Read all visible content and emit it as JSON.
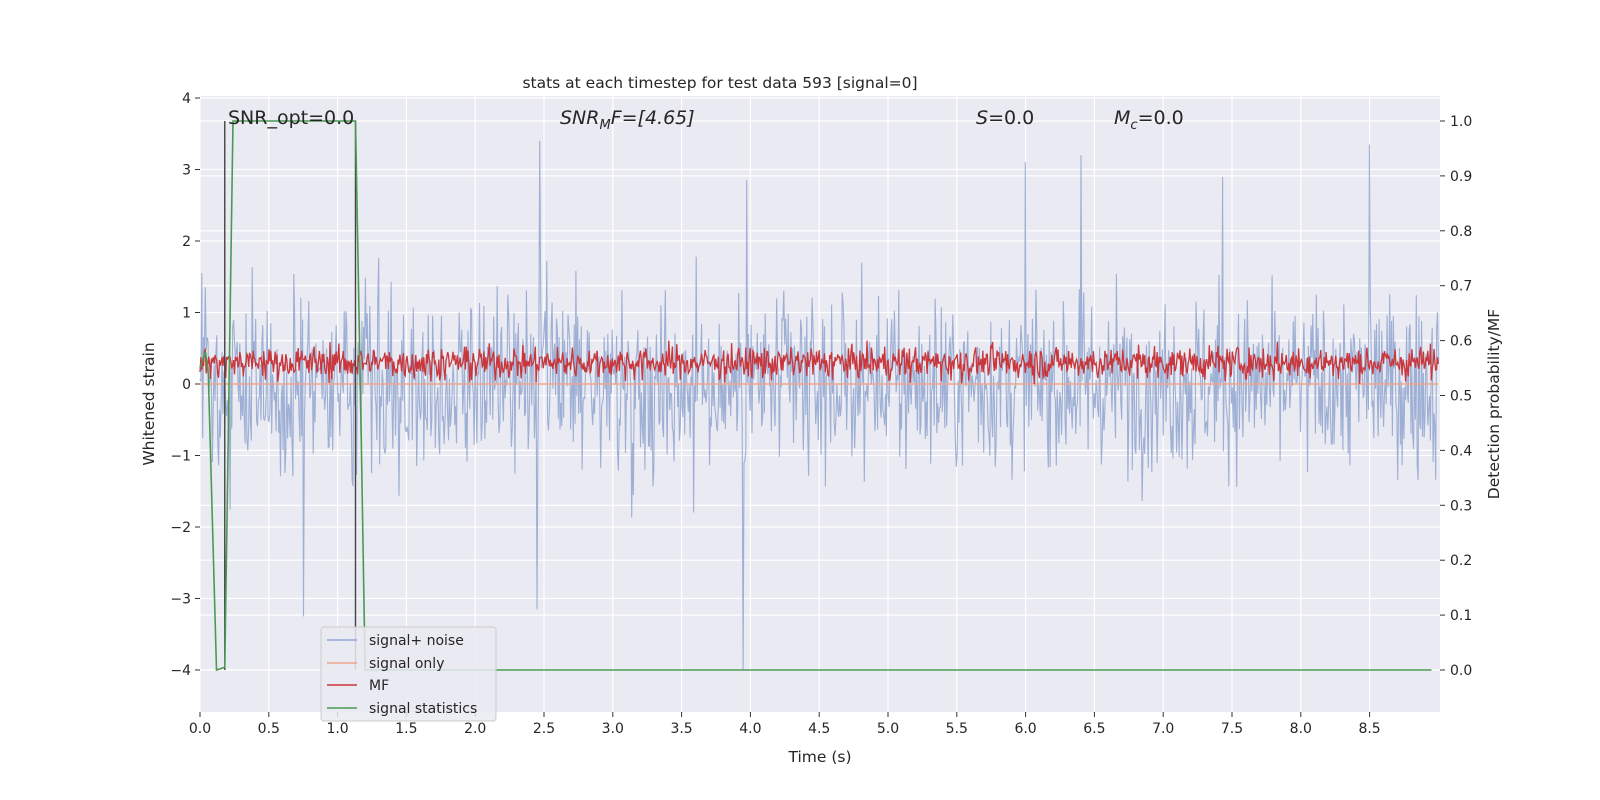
{
  "chart_data": {
    "type": "line",
    "title": "stats at each timestep for test data 593 [signal=0]",
    "xlabel": "Time (s)",
    "ylabel": "Whitened strain",
    "y2label": "Detection probability/MF",
    "xlim": [
      0.0,
      9.0
    ],
    "ylim": [
      -4.35,
      4.1
    ],
    "y2lim": [
      -0.05,
      1.04
    ],
    "x_ticks": [
      "0.0",
      "0.5",
      "1.0",
      "1.5",
      "2.0",
      "2.5",
      "3.0",
      "3.5",
      "4.0",
      "4.5",
      "5.0",
      "5.5",
      "6.0",
      "6.5",
      "7.0",
      "7.5",
      "8.0",
      "8.5"
    ],
    "y_ticks": [
      "−4",
      "−3",
      "−2",
      "−1",
      "0",
      "1",
      "2",
      "3",
      "4"
    ],
    "y2_ticks": [
      "0.0",
      "0.1",
      "0.2",
      "0.3",
      "0.4",
      "0.5",
      "0.6",
      "0.7",
      "0.8",
      "0.9",
      "1.0"
    ],
    "grid": true,
    "legend_position": "lower-left",
    "series": [
      {
        "name": "signal+ noise",
        "axis": "left",
        "color": "#8fa5cf",
        "description_envelope": "noise band roughly between -1.9 and 1.9 with spikes up to 3.4 and down to -4.0",
        "notable_points": [
          [
            0.75,
            -3.25
          ],
          [
            2.47,
            3.4
          ],
          [
            2.45,
            -3.15
          ],
          [
            3.95,
            -4.0
          ],
          [
            3.97,
            2.85
          ],
          [
            6.0,
            3.1
          ],
          [
            6.4,
            3.2
          ],
          [
            7.43,
            2.9
          ],
          [
            8.5,
            3.35
          ]
        ]
      },
      {
        "name": "signal only",
        "axis": "left",
        "color": "#f0a58a",
        "x": [
          0.0,
          9.0
        ],
        "values": [
          0.0,
          0.0
        ]
      },
      {
        "name": "MF",
        "axis": "left",
        "color": "#c9363b",
        "description_envelope": "band roughly between 0.0 and 0.6 with peaks near 0.9"
      },
      {
        "name": "signal statistics",
        "axis": "right",
        "color": "#4c9a52",
        "x": [
          0.0,
          0.04,
          0.06,
          0.12,
          0.18,
          0.24,
          1.1,
          1.13,
          1.17,
          1.2,
          8.95
        ],
        "values": [
          0.55,
          0.58,
          0.54,
          0.0,
          0.005,
          1.0,
          1.0,
          1.0,
          0.45,
          0.0,
          0.0
        ]
      }
    ],
    "vertical_lines": [
      0.18,
      1.13
    ],
    "annotations": {
      "snr_opt": "SNR_opt=0.0",
      "snr_mf_base": "SNR",
      "snr_mf_sub": "M",
      "snr_mf_rest": "F=[4.65]",
      "s_italic": "S",
      "s_rest": "=0.0",
      "mc_base": "M",
      "mc_sub": "c",
      "mc_rest": "=0.0"
    }
  }
}
